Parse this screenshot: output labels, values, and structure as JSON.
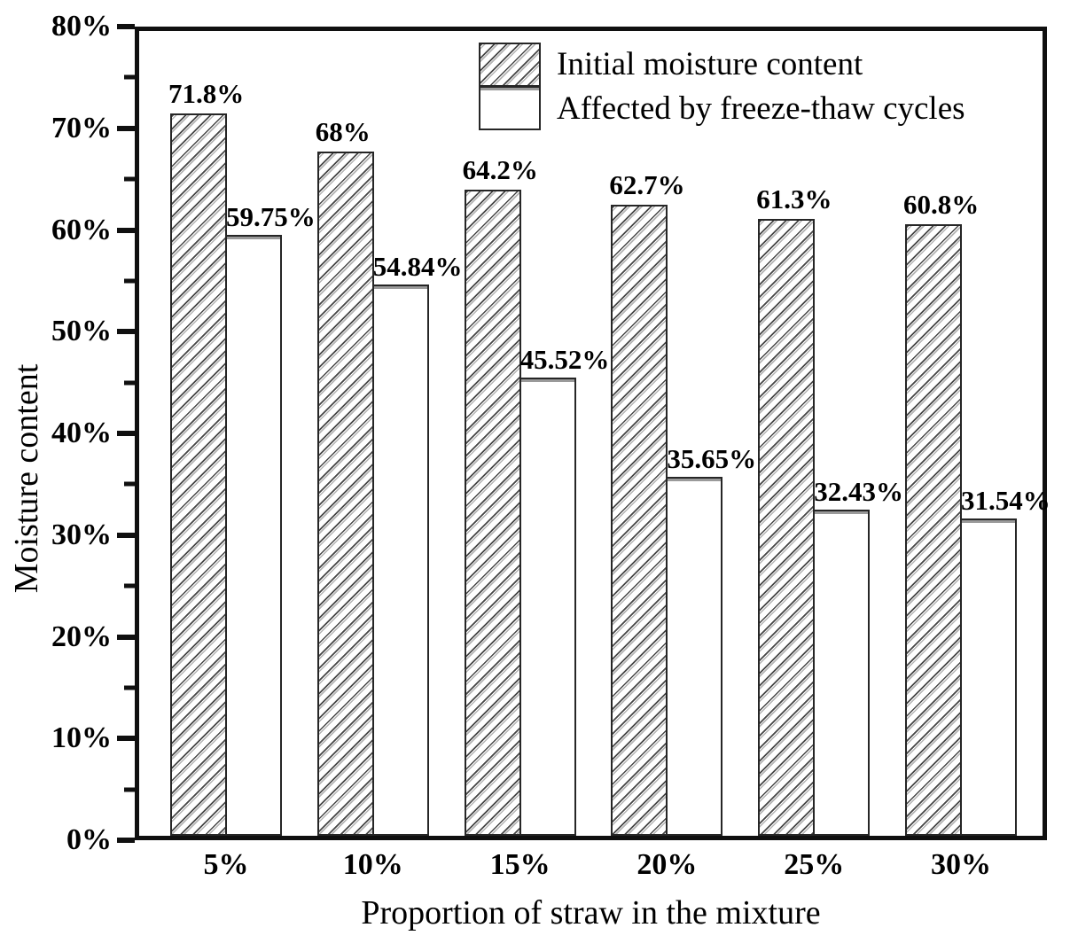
{
  "chart_data": {
    "type": "bar",
    "title": "",
    "xlabel": "Proportion of straw in the mixture",
    "ylabel": "Moisture content",
    "categories": [
      "5%",
      "10%",
      "15%",
      "20%",
      "25%",
      "30%"
    ],
    "series": [
      {
        "name": "Initial moisture content",
        "style": "hatched",
        "values": [
          71.8,
          68,
          64.2,
          62.7,
          61.3,
          60.8
        ],
        "labels": [
          "71.8%",
          "68%",
          "64.2%",
          "62.7%",
          "61.3%",
          "60.8%"
        ]
      },
      {
        "name": "Affected by freeze-thaw cycles",
        "style": "white",
        "values": [
          59.75,
          54.84,
          45.52,
          35.65,
          32.43,
          31.54
        ],
        "labels": [
          "59.75%",
          "54.84%",
          "45.52%",
          "35.65%",
          "32.43%",
          "31.54%"
        ]
      }
    ],
    "ylim": [
      0,
      80
    ],
    "ytick_interval": 10,
    "minor_tick_interval": 5,
    "ytick_labels": [
      "0%",
      "10%",
      "20%",
      "30%",
      "40%",
      "50%",
      "60%",
      "70%",
      "80%"
    ],
    "legend_position": "top-right-inside",
    "grid": false
  },
  "colors": {
    "background": "#ffffff",
    "text": "#000000",
    "bar_edge": "#262626",
    "axis": "#101010",
    "hatch_line": "#474747",
    "hatch_line_light": "#b4b4b4",
    "bar_top_shadow": "#9a9a9a",
    "bar_fill": "#ffffff"
  }
}
